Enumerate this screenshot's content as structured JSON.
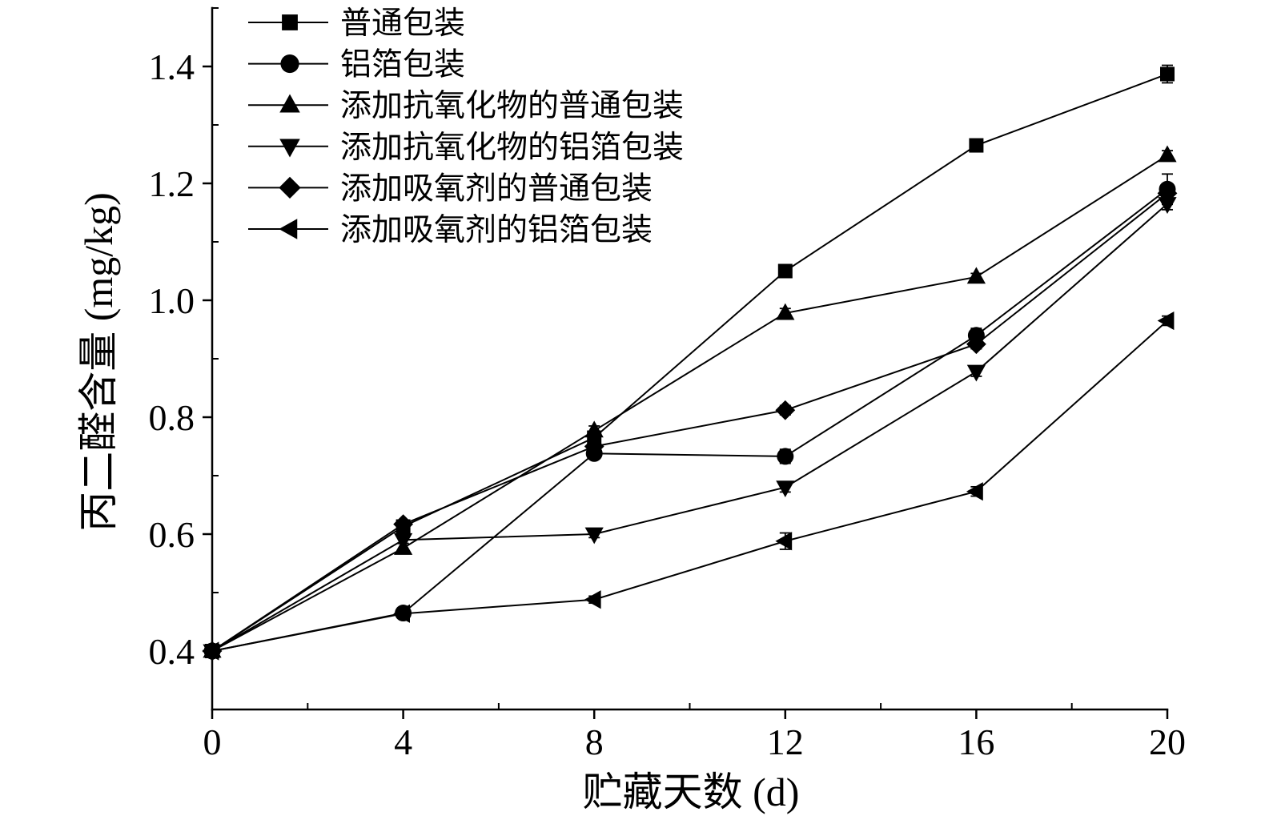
{
  "chart_data": {
    "type": "line",
    "xlabel": "贮藏天数 (d)",
    "ylabel": "丙二醛含量 (mg/kg)",
    "xlim": [
      0,
      20
    ],
    "ylim": [
      0.3,
      1.5
    ],
    "x_ticks": [
      0,
      4,
      8,
      12,
      16,
      20
    ],
    "x_tick_labels": [
      "0",
      "4",
      "8",
      "12",
      "16",
      "20"
    ],
    "y_ticks": [
      0.4,
      0.6,
      0.8,
      1.0,
      1.2,
      1.4
    ],
    "y_tick_labels": [
      "0.4",
      "0.6",
      "0.8",
      "1.0",
      "1.2",
      "1.4"
    ],
    "grid": false,
    "legend_position": "top-left",
    "axis_color": "#000000",
    "x": [
      0,
      4,
      8,
      12,
      16,
      20
    ],
    "series": [
      {
        "name": "普通包装",
        "marker": "square",
        "color": "#000000",
        "values": [
          0.4,
          0.613,
          0.765,
          1.05,
          1.265,
          1.387
        ],
        "errors": [
          0.005,
          0.005,
          0.008,
          0.008,
          0.006,
          0.015
        ]
      },
      {
        "name": "铝箔包装",
        "marker": "circle",
        "color": "#000000",
        "values": [
          0.4,
          0.465,
          0.738,
          0.733,
          0.94,
          1.19
        ],
        "errors": [
          0.005,
          0.008,
          0.008,
          0.012,
          0.012,
          0.026
        ]
      },
      {
        "name": "添加抗氧化物的普通包装",
        "marker": "triangle-up",
        "color": "#000000",
        "values": [
          0.4,
          0.576,
          0.777,
          0.978,
          1.04,
          1.248
        ],
        "errors": [
          0.005,
          0.008,
          0.008,
          0.008,
          0.006,
          0.008
        ]
      },
      {
        "name": "添加抗氧化物的铝箔包装",
        "marker": "triangle-down",
        "color": "#000000",
        "values": [
          0.4,
          0.59,
          0.6,
          0.68,
          0.878,
          1.165
        ],
        "errors": [
          0.005,
          0.006,
          0.006,
          0.008,
          0.008,
          0.01
        ]
      },
      {
        "name": "添加吸氧剂的普通包装",
        "marker": "diamond",
        "color": "#000000",
        "values": [
          0.4,
          0.617,
          0.75,
          0.812,
          0.925,
          1.183
        ],
        "errors": [
          0.005,
          0.006,
          0.006,
          0.008,
          0.008,
          0.01
        ]
      },
      {
        "name": "添加吸氧剂的铝箔包装",
        "marker": "triangle-left",
        "color": "#000000",
        "values": [
          0.4,
          0.464,
          0.488,
          0.588,
          0.673,
          0.965
        ],
        "errors": [
          0.005,
          0.006,
          0.006,
          0.014,
          0.008,
          0.008
        ]
      }
    ]
  }
}
